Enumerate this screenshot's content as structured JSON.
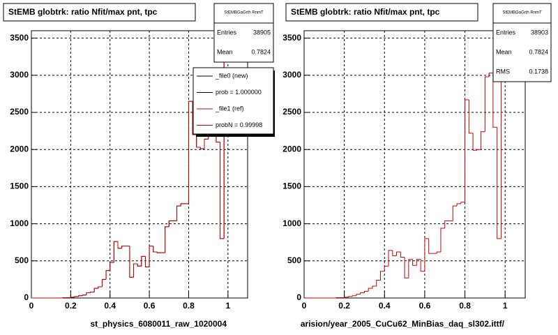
{
  "chart_data": [
    {
      "type": "histogram",
      "title": "StEMB globtrk: ratio Nfit/max pnt, tpc",
      "xlabel": "st_physics_6080011_raw_1020004",
      "bins": [
        0,
        0.02,
        0.04,
        0.06,
        0.08,
        0.1,
        0.12,
        0.14,
        0.16,
        0.18,
        0.2,
        0.22,
        0.24,
        0.26,
        0.28,
        0.3,
        0.32,
        0.34,
        0.36,
        0.38,
        0.4,
        0.42,
        0.44,
        0.46,
        0.48,
        0.5,
        0.52,
        0.54,
        0.56,
        0.58,
        0.6,
        0.62,
        0.64,
        0.66,
        0.68,
        0.7,
        0.72,
        0.74,
        0.76,
        0.78,
        0.8,
        0.82,
        0.84,
        0.86,
        0.88,
        0.9,
        0.92,
        0.94,
        0.96,
        0.98,
        1.0
      ],
      "series": [
        {
          "name": "_file0 (new)",
          "color": "#000000",
          "values": [
            0,
            0,
            0,
            0,
            0,
            0,
            0,
            0,
            5,
            5,
            10,
            20,
            30,
            40,
            70,
            80,
            130,
            150,
            250,
            370,
            480,
            760,
            670,
            700,
            700,
            280,
            460,
            430,
            560,
            420,
            700,
            620,
            610,
            610,
            960,
            1040,
            1040,
            1240,
            1270,
            1270,
            2650,
            2200,
            2030,
            2010,
            2140,
            2710,
            3030,
            2100,
            800,
            3350
          ]
        },
        {
          "name": "_file1 (ref)",
          "color": "#cc0000",
          "values": [
            0,
            0,
            0,
            0,
            0,
            0,
            0,
            0,
            5,
            5,
            10,
            20,
            30,
            40,
            70,
            80,
            130,
            150,
            250,
            370,
            480,
            760,
            670,
            700,
            700,
            280,
            460,
            430,
            560,
            420,
            700,
            620,
            610,
            610,
            960,
            1040,
            1040,
            1240,
            1270,
            1270,
            2650,
            2200,
            2030,
            2010,
            2140,
            2710,
            3030,
            2100,
            800,
            3350
          ]
        }
      ],
      "annotations": [
        "prob = 1.000000",
        "probN = 0.99998"
      ],
      "stats": {
        "title": "StEMBGaGrth RnmT",
        "rows": [
          {
            "label": "Entries",
            "value": 38905
          },
          {
            "label": "Mean",
            "value": 0.7824
          }
        ]
      },
      "xlim": [
        0,
        1.1
      ],
      "ylim": [
        0,
        3600
      ],
      "xticks": [
        0,
        0.2,
        0.4,
        0.6,
        0.8,
        1
      ],
      "yticks": [
        0,
        500,
        1000,
        1500,
        2000,
        2500,
        3000,
        3500
      ],
      "grid": true
    },
    {
      "type": "histogram",
      "title": "StEMB globtrk: ratio Nfit/max pnt, tpc",
      "xlabel": "arision/year_2005_CuCu62_MinBias_daq_sl302.ittf/",
      "bins": [
        0,
        0.02,
        0.04,
        0.06,
        0.08,
        0.1,
        0.12,
        0.14,
        0.16,
        0.18,
        0.2,
        0.22,
        0.24,
        0.26,
        0.28,
        0.3,
        0.32,
        0.34,
        0.36,
        0.38,
        0.4,
        0.42,
        0.44,
        0.46,
        0.48,
        0.5,
        0.52,
        0.54,
        0.56,
        0.58,
        0.6,
        0.62,
        0.64,
        0.66,
        0.68,
        0.7,
        0.72,
        0.74,
        0.76,
        0.78,
        0.8,
        0.82,
        0.84,
        0.86,
        0.88,
        0.9,
        0.92,
        0.94,
        0.96,
        0.98,
        1.0
      ],
      "series": [
        {
          "color": "#cc0000",
          "values": [
            0,
            0,
            0,
            0,
            0,
            0,
            0,
            0,
            5,
            5,
            10,
            20,
            30,
            50,
            70,
            90,
            130,
            160,
            240,
            360,
            430,
            640,
            570,
            620,
            550,
            270,
            520,
            440,
            520,
            360,
            800,
            600,
            600,
            620,
            940,
            1040,
            1040,
            1240,
            1270,
            1290,
            2670,
            2220,
            1990,
            2000,
            2240,
            2980,
            3030,
            2300,
            800,
            3350
          ]
        }
      ],
      "stats": {
        "title": "StEMBGaGrth RnmT",
        "rows": [
          {
            "label": "Entries",
            "value": 38903
          },
          {
            "label": "Mean",
            "value": 0.7824
          },
          {
            "label": "RMS",
            "value": 0.1738
          }
        ]
      },
      "xlim": [
        0,
        1.1
      ],
      "ylim": [
        0,
        3600
      ],
      "xticks": [
        0,
        0.2,
        0.4,
        0.6,
        0.8,
        1
      ],
      "yticks": [
        0,
        500,
        1000,
        1500,
        2000,
        2500,
        3000,
        3500
      ],
      "grid": true
    }
  ]
}
